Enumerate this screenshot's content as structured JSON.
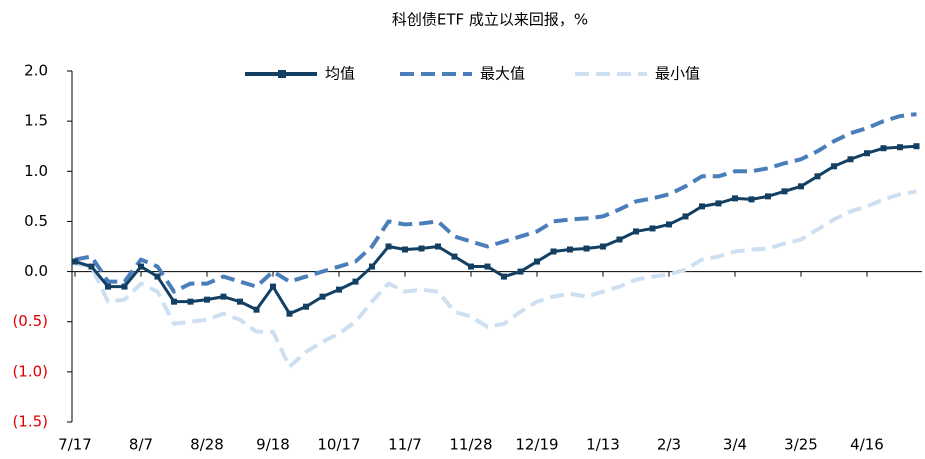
{
  "chart_data": {
    "type": "line",
    "title": "科创债ETF 成立以来回报，%",
    "categories": [
      "7/17",
      null,
      null,
      null,
      "8/7",
      null,
      null,
      null,
      "8/28",
      null,
      null,
      null,
      "9/18",
      null,
      null,
      null,
      "10/17",
      null,
      null,
      null,
      "11/7",
      null,
      null,
      null,
      "11/28",
      null,
      null,
      null,
      "12/19",
      null,
      null,
      null,
      "1/13",
      null,
      null,
      null,
      "2/3",
      null,
      null,
      null,
      "3/4",
      null,
      null,
      null,
      "3/25",
      null,
      null,
      null,
      "4/16",
      null,
      null,
      null
    ],
    "series": [
      {
        "name": "均值",
        "color": "#123f62",
        "dash": false,
        "markers": true,
        "values": [
          0.1,
          0.05,
          -0.15,
          -0.15,
          0.05,
          -0.05,
          -0.3,
          -0.3,
          -0.28,
          -0.25,
          -0.3,
          -0.38,
          -0.15,
          -0.42,
          -0.35,
          -0.25,
          -0.18,
          -0.1,
          0.05,
          0.25,
          0.22,
          0.23,
          0.25,
          0.15,
          0.05,
          0.05,
          -0.05,
          0.0,
          0.1,
          0.2,
          0.22,
          0.23,
          0.25,
          0.32,
          0.4,
          0.43,
          0.47,
          0.55,
          0.65,
          0.68,
          0.73,
          0.72,
          0.75,
          0.8,
          0.85,
          0.95,
          1.05,
          1.12,
          1.18,
          1.23,
          1.24,
          1.25
        ]
      },
      {
        "name": "最大值",
        "color": "#4a7ebb",
        "dash": true,
        "markers": false,
        "values": [
          0.12,
          0.15,
          -0.1,
          -0.1,
          0.12,
          0.05,
          -0.2,
          -0.12,
          -0.12,
          -0.05,
          -0.1,
          -0.15,
          0.0,
          -0.1,
          -0.05,
          0.0,
          0.05,
          0.1,
          0.25,
          0.5,
          0.47,
          0.48,
          0.5,
          0.35,
          0.3,
          0.25,
          0.3,
          0.35,
          0.4,
          0.5,
          0.52,
          0.53,
          0.55,
          0.62,
          0.7,
          0.73,
          0.77,
          0.85,
          0.95,
          0.95,
          1.0,
          1.0,
          1.03,
          1.08,
          1.12,
          1.2,
          1.3,
          1.38,
          1.43,
          1.5,
          1.55,
          1.57
        ]
      },
      {
        "name": "最小值",
        "color": "#cddff0",
        "dash": true,
        "markers": false,
        "values": [
          0.08,
          0.05,
          -0.3,
          -0.28,
          -0.12,
          -0.2,
          -0.52,
          -0.5,
          -0.48,
          -0.42,
          -0.48,
          -0.6,
          -0.6,
          -0.95,
          -0.8,
          -0.7,
          -0.62,
          -0.5,
          -0.3,
          -0.12,
          -0.2,
          -0.18,
          -0.2,
          -0.4,
          -0.45,
          -0.55,
          -0.52,
          -0.4,
          -0.3,
          -0.25,
          -0.22,
          -0.25,
          -0.2,
          -0.15,
          -0.08,
          -0.05,
          -0.03,
          0.02,
          0.12,
          0.15,
          0.2,
          0.22,
          0.23,
          0.28,
          0.32,
          0.42,
          0.52,
          0.6,
          0.65,
          0.72,
          0.77,
          0.8
        ]
      }
    ],
    "ylim": [
      -1.5,
      2.0
    ],
    "yticks": [
      {
        "value": -1.5,
        "label": "(1.5)"
      },
      {
        "value": -1.0,
        "label": "(1.0)"
      },
      {
        "value": -0.5,
        "label": "(0.5)"
      },
      {
        "value": 0,
        "label": "0.0"
      },
      0.5,
      {
        "value": 1.0,
        "label": "1.0"
      },
      1.5,
      {
        "value": 2.0,
        "label": "2.0"
      }
    ],
    "ytick_negative_color": "#e00000",
    "grid": false,
    "legend": "top"
  }
}
